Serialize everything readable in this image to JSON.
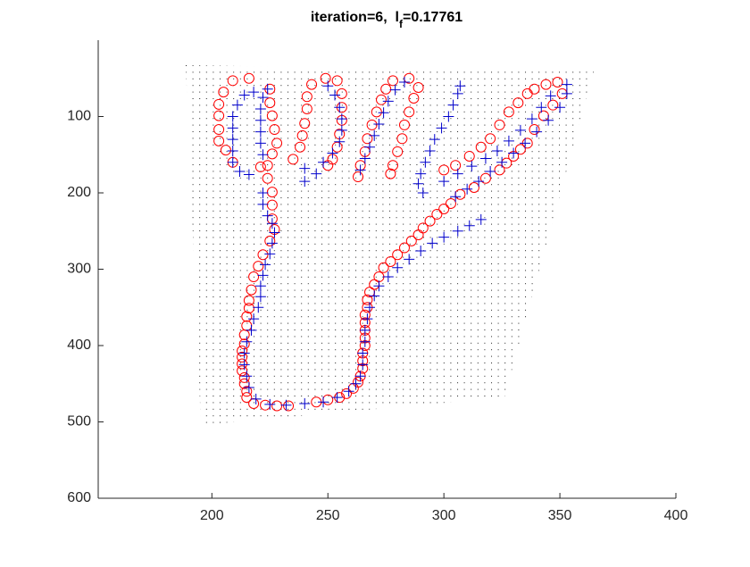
{
  "chart_data": {
    "type": "scatter",
    "title": {
      "main": "iteration=6,  l",
      "subscript": "f",
      "rest": "=0.17761"
    },
    "xlim": [
      151,
      400
    ],
    "ylim": [
      0,
      600
    ],
    "y_direction": "reverse",
    "xticks": [
      200,
      250,
      300,
      350,
      400
    ],
    "yticks": [
      100,
      200,
      300,
      400,
      500,
      600
    ],
    "series": [
      {
        "marker": "circle",
        "color": "#ff0000",
        "points": [
          [
            225,
            263
          ],
          [
            222,
            281
          ],
          [
            220,
            296
          ],
          [
            218,
            310
          ],
          [
            217,
            327
          ],
          [
            216,
            341
          ],
          [
            216,
            351
          ],
          [
            215,
            362
          ],
          [
            215,
            374
          ],
          [
            214,
            386
          ],
          [
            214,
            398
          ],
          [
            213,
            407
          ],
          [
            213,
            415
          ],
          [
            213,
            424
          ],
          [
            213,
            433
          ],
          [
            214,
            442
          ],
          [
            214,
            450
          ],
          [
            215,
            460
          ],
          [
            215,
            468
          ],
          [
            218,
            476
          ],
          [
            223,
            478
          ],
          [
            228,
            479
          ],
          [
            233,
            479
          ],
          [
            245,
            474
          ],
          [
            250,
            471
          ],
          [
            255,
            468
          ],
          [
            258,
            463
          ],
          [
            261,
            456
          ],
          [
            263,
            448
          ],
          [
            264,
            440
          ],
          [
            265,
            430
          ],
          [
            265,
            420
          ],
          [
            265,
            410
          ],
          [
            266,
            400
          ],
          [
            266,
            390
          ],
          [
            266,
            380
          ],
          [
            266,
            370
          ],
          [
            266,
            360
          ],
          [
            267,
            350
          ],
          [
            267,
            340
          ],
          [
            268,
            330
          ],
          [
            270,
            320
          ],
          [
            272,
            310
          ],
          [
            274,
            298
          ],
          [
            277,
            290
          ],
          [
            280,
            281
          ],
          [
            283,
            272
          ],
          [
            286,
            263
          ],
          [
            289,
            255
          ],
          [
            291,
            246
          ],
          [
            294,
            237
          ],
          [
            297,
            228
          ],
          [
            300,
            221
          ],
          [
            303,
            214
          ],
          [
            307,
            202
          ],
          [
            313,
            193
          ],
          [
            318,
            181
          ],
          [
            324,
            170
          ],
          [
            327,
            161
          ],
          [
            330,
            152
          ],
          [
            333,
            143
          ],
          [
            336,
            135
          ],
          [
            339,
            117
          ],
          [
            343,
            99
          ],
          [
            347,
            85
          ],
          [
            351,
            70
          ],
          [
            349,
            55
          ],
          [
            344,
            58
          ],
          [
            339,
            64
          ],
          [
            336,
            70
          ],
          [
            332,
            82
          ],
          [
            328,
            94
          ],
          [
            324,
            111
          ],
          [
            320,
            129
          ],
          [
            316,
            140
          ],
          [
            311,
            152
          ],
          [
            305,
            164
          ],
          [
            300,
            170
          ],
          [
            285,
            50
          ],
          [
            289,
            62
          ],
          [
            287,
            76
          ],
          [
            285,
            94
          ],
          [
            283,
            111
          ],
          [
            282,
            129
          ],
          [
            280,
            146
          ],
          [
            278,
            164
          ],
          [
            277,
            175
          ],
          [
            278,
            53
          ],
          [
            275,
            64
          ],
          [
            273,
            78
          ],
          [
            271,
            94
          ],
          [
            269,
            111
          ],
          [
            267,
            129
          ],
          [
            266,
            146
          ],
          [
            264,
            164
          ],
          [
            263,
            179
          ],
          [
            249,
            50
          ],
          [
            243,
            58
          ],
          [
            241,
            74
          ],
          [
            241,
            90
          ],
          [
            240,
            109
          ],
          [
            239,
            125
          ],
          [
            238,
            140
          ],
          [
            235,
            156
          ],
          [
            254,
            53
          ],
          [
            256,
            70
          ],
          [
            256,
            88
          ],
          [
            256,
            105
          ],
          [
            255,
            123
          ],
          [
            254,
            140
          ],
          [
            252,
            156
          ],
          [
            250,
            164
          ],
          [
            225,
            64
          ],
          [
            225,
            82
          ],
          [
            226,
            99
          ],
          [
            227,
            117
          ],
          [
            228,
            135
          ],
          [
            226,
            149
          ],
          [
            224,
            164
          ],
          [
            224,
            181
          ],
          [
            226,
            199
          ],
          [
            226,
            216
          ],
          [
            226,
            234
          ],
          [
            227,
            248
          ],
          [
            209,
            53
          ],
          [
            205,
            68
          ],
          [
            203,
            84
          ],
          [
            203,
            99
          ],
          [
            203,
            117
          ],
          [
            203,
            132
          ],
          [
            206,
            144
          ],
          [
            209,
            160
          ],
          [
            221,
            166
          ],
          [
            216,
            50
          ]
        ]
      },
      {
        "marker": "plus",
        "color": "#0000cc",
        "points": [
          [
            216,
            455
          ],
          [
            215,
            440
          ],
          [
            214,
            425
          ],
          [
            214,
            410
          ],
          [
            215,
            395
          ],
          [
            217,
            380
          ],
          [
            218,
            365
          ],
          [
            220,
            350
          ],
          [
            221,
            336
          ],
          [
            221,
            322
          ],
          [
            222,
            308
          ],
          [
            223,
            294
          ],
          [
            225,
            280
          ],
          [
            226,
            266
          ],
          [
            227,
            252
          ],
          [
            219,
            470
          ],
          [
            225,
            477
          ],
          [
            232,
            478
          ],
          [
            240,
            476
          ],
          [
            248,
            474
          ],
          [
            254,
            468
          ],
          [
            259,
            460
          ],
          [
            262,
            450
          ],
          [
            264,
            440
          ],
          [
            265,
            425
          ],
          [
            265,
            410
          ],
          [
            266,
            395
          ],
          [
            266,
            380
          ],
          [
            267,
            365
          ],
          [
            268,
            350
          ],
          [
            270,
            335
          ],
          [
            272,
            322
          ],
          [
            276,
            310
          ],
          [
            280,
            298
          ],
          [
            285,
            287
          ],
          [
            290,
            276
          ],
          [
            295,
            266
          ],
          [
            300,
            258
          ],
          [
            306,
            250
          ],
          [
            311,
            243
          ],
          [
            316,
            235
          ],
          [
            305,
            205
          ],
          [
            310,
            195
          ],
          [
            315,
            185
          ],
          [
            320,
            172
          ],
          [
            325,
            160
          ],
          [
            330,
            148
          ],
          [
            335,
            135
          ],
          [
            340,
            120
          ],
          [
            345,
            105
          ],
          [
            350,
            88
          ],
          [
            353,
            70
          ],
          [
            353,
            58
          ],
          [
            300,
            185
          ],
          [
            306,
            175
          ],
          [
            312,
            165
          ],
          [
            318,
            155
          ],
          [
            323,
            145
          ],
          [
            328,
            132
          ],
          [
            333,
            118
          ],
          [
            338,
            103
          ],
          [
            342,
            88
          ],
          [
            346,
            73
          ],
          [
            291,
            200
          ],
          [
            289,
            188
          ],
          [
            290,
            175
          ],
          [
            292,
            160
          ],
          [
            294,
            145
          ],
          [
            296,
            130
          ],
          [
            299,
            115
          ],
          [
            302,
            100
          ],
          [
            304,
            85
          ],
          [
            306,
            70
          ],
          [
            307,
            60
          ],
          [
            264,
            170
          ],
          [
            266,
            155
          ],
          [
            268,
            140
          ],
          [
            270,
            125
          ],
          [
            272,
            110
          ],
          [
            274,
            95
          ],
          [
            276,
            80
          ],
          [
            279,
            65
          ],
          [
            283,
            55
          ],
          [
            245,
            175
          ],
          [
            248,
            160
          ],
          [
            252,
            148
          ],
          [
            255,
            133
          ],
          [
            256,
            118
          ],
          [
            256,
            103
          ],
          [
            255,
            88
          ],
          [
            253,
            72
          ],
          [
            250,
            60
          ],
          [
            240,
            185
          ],
          [
            240,
            168
          ],
          [
            222,
            200
          ],
          [
            222,
            215
          ],
          [
            224,
            230
          ],
          [
            226,
            240
          ],
          [
            222,
            150
          ],
          [
            221,
            135
          ],
          [
            221,
            120
          ],
          [
            221,
            105
          ],
          [
            221,
            90
          ],
          [
            222,
            75
          ],
          [
            224,
            64
          ],
          [
            209,
            160
          ],
          [
            209,
            145
          ],
          [
            209,
            130
          ],
          [
            209,
            115
          ],
          [
            209,
            100
          ],
          [
            211,
            85
          ],
          [
            214,
            72
          ],
          [
            218,
            68
          ],
          [
            216,
            176
          ],
          [
            212,
            172
          ]
        ]
      }
    ]
  }
}
